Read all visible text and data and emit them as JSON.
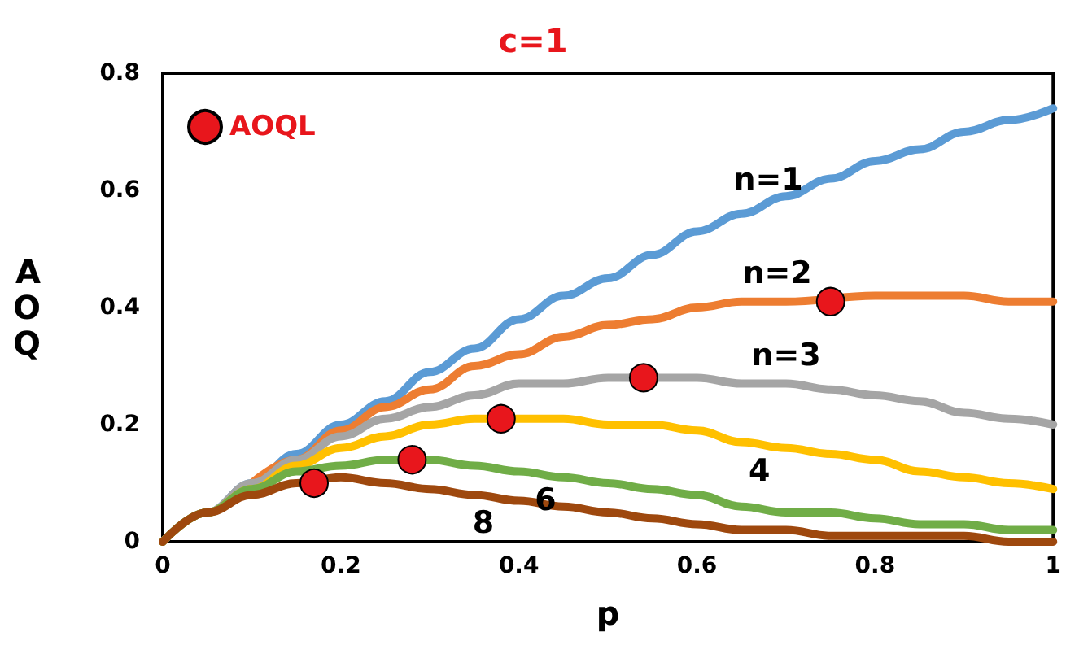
{
  "chart_data": {
    "type": "line",
    "title": "c=1",
    "xlabel": "p",
    "ylabel": "AOQ",
    "x": [
      0,
      0.05,
      0.1,
      0.15,
      0.2,
      0.25,
      0.3,
      0.35,
      0.4,
      0.45,
      0.5,
      0.55,
      0.6,
      0.65,
      0.7,
      0.75,
      0.8,
      0.85,
      0.9,
      0.95,
      1
    ],
    "series": [
      {
        "color": "#5b9bd5",
        "values": [
          0,
          0.05,
          0.1,
          0.15,
          0.2,
          0.24,
          0.29,
          0.33,
          0.38,
          0.42,
          0.45,
          0.49,
          0.53,
          0.56,
          0.59,
          0.62,
          0.65,
          0.67,
          0.7,
          0.72,
          0.74
        ]
      },
      {
        "color": "#ed7d31",
        "values": [
          null,
          null,
          0.1,
          0.14,
          0.19,
          0.23,
          0.26,
          0.3,
          0.32,
          0.35,
          0.37,
          0.38,
          0.4,
          0.41,
          0.41,
          null,
          0.42,
          0.42,
          0.42,
          0.41,
          0.41
        ]
      },
      {
        "color": "#a5a5a5",
        "values": [
          0,
          0.05,
          0.1,
          0.14,
          0.18,
          0.21,
          0.23,
          0.25,
          0.27,
          0.27,
          0.28,
          0.28,
          0.28,
          0.27,
          0.27,
          0.26,
          0.25,
          0.24,
          0.22,
          0.21,
          0.2
        ]
      },
      {
        "color": "#ffc000",
        "values": [
          0,
          0.05,
          0.09,
          0.13,
          0.16,
          0.18,
          0.2,
          0.21,
          0.21,
          0.21,
          0.2,
          0.2,
          0.19,
          0.17,
          0.16,
          0.15,
          0.14,
          0.12,
          0.11,
          0.1,
          0.09
        ]
      },
      {
        "color": "#70ad47",
        "values": [
          0,
          0.05,
          0.09,
          0.12,
          0.13,
          0.14,
          0.14,
          0.13,
          0.12,
          0.11,
          0.1,
          0.09,
          0.08,
          0.06,
          0.05,
          0.05,
          0.04,
          0.03,
          0.03,
          0.02,
          0.02
        ]
      },
      {
        "color": "#9e480e",
        "values": [
          0,
          0.05,
          0.08,
          0.1,
          0.11,
          0.1,
          0.09,
          0.08,
          0.07,
          0.06,
          0.05,
          0.04,
          0.03,
          0.02,
          0.02,
          0.01,
          0.01,
          0.01,
          0.01,
          0,
          0
        ]
      },
      {
        "type": "scatter",
        "name": "AOQL",
        "color": "#e8161c",
        "marker": "circle",
        "x": [
          0.17,
          0.28,
          0.38,
          0.54,
          0.75
        ],
        "values": [
          0.1,
          0.14,
          0.21,
          0.28,
          0.41
        ]
      }
    ],
    "annotations": [
      {
        "text": "n=1",
        "x": 0.68,
        "y": 0.57
      },
      {
        "text": "n=2",
        "x": 0.69,
        "y": 0.41
      },
      {
        "text": "n=3",
        "x": 0.7,
        "y": 0.27
      },
      {
        "text": "4",
        "x": 0.67,
        "y": 0.17
      },
      {
        "text": "6",
        "x": 0.43,
        "y": 0.12
      },
      {
        "text": "8",
        "x": 0.36,
        "y": 0.08
      }
    ],
    "xlim": [
      0,
      1
    ],
    "xticks": [
      0,
      0.2,
      0.4,
      0.6,
      0.8,
      1
    ],
    "ylim": [
      0,
      0.8
    ],
    "yticks": [
      0,
      0.2,
      0.4,
      0.6,
      0.8
    ],
    "grid": false,
    "legend": "top left",
    "marker": "none",
    "line_style": "solid"
  }
}
